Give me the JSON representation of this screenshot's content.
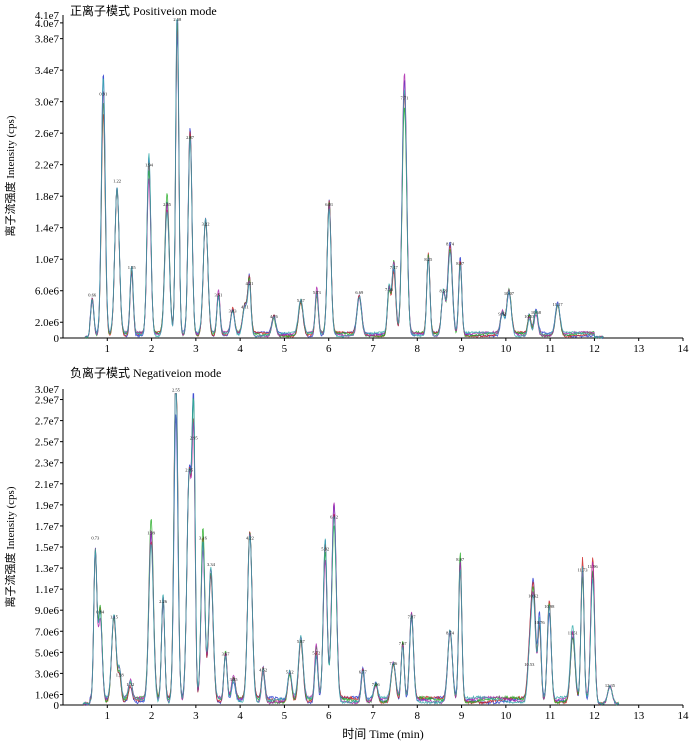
{
  "chart_data": [
    {
      "type": "line",
      "title": "正离子模式 Positiveion mode",
      "ylabel": "离子流强度 Intensity (cps)",
      "xlim": [
        0,
        14
      ],
      "ylim": [
        0,
        41000000
      ],
      "y_top_label": "4.1e7",
      "yticks": [
        "0",
        "2.0e6",
        "6.0e6",
        "1.0e7",
        "1.4e7",
        "1.8e7",
        "2.2e7",
        "2.6e7",
        "3.0e7",
        "3.4e7",
        "3.8e7",
        "4.0e7"
      ],
      "ytick_values": [
        0,
        2000000,
        6000000,
        10000000,
        14000000,
        18000000,
        22000000,
        26000000,
        30000000,
        34000000,
        38000000,
        40000000
      ],
      "xticks": [
        "1",
        "2",
        "3",
        "4",
        "5",
        "6",
        "7",
        "8",
        "9",
        "10",
        "11",
        "12",
        "13",
        "14"
      ],
      "colors": [
        "#2233cc",
        "#cc2222",
        "#22aa22",
        "#aa22aa",
        "#33aaaa"
      ],
      "peaks": [
        {
          "t": 0.66,
          "v": 5000000,
          "label": "0.66"
        },
        {
          "t": 0.91,
          "v": 30500000,
          "label": "0.91"
        },
        {
          "t": 1.22,
          "v": 19500000,
          "label": "1.22"
        },
        {
          "t": 1.55,
          "v": 8500000,
          "label": "1.55"
        },
        {
          "t": 1.94,
          "v": 21500000,
          "label": "1.94"
        },
        {
          "t": 2.35,
          "v": 16500000,
          "label": "2.35"
        },
        {
          "t": 2.58,
          "v": 40000000,
          "label": "2.58"
        },
        {
          "t": 2.87,
          "v": 25000000,
          "label": "2.87"
        },
        {
          "t": 3.22,
          "v": 14000000,
          "label": "3.22"
        },
        {
          "t": 3.51,
          "v": 5000000,
          "label": "3.51"
        },
        {
          "t": 3.83,
          "v": 3000000,
          "label": "3.83"
        },
        {
          "t": 4.11,
          "v": 3500000,
          "label": "4.11"
        },
        {
          "t": 4.21,
          "v": 6500000,
          "label": "4.21"
        },
        {
          "t": 4.76,
          "v": 2300000,
          "label": "4.76"
        },
        {
          "t": 5.37,
          "v": 4300000,
          "label": "5.37"
        },
        {
          "t": 5.73,
          "v": 5300000,
          "label": "5.73"
        },
        {
          "t": 6.01,
          "v": 16500000,
          "label": "6.01"
        },
        {
          "t": 6.69,
          "v": 5300000,
          "label": "6.69"
        },
        {
          "t": 7.36,
          "v": 5700000,
          "label": "7.36"
        },
        {
          "t": 7.47,
          "v": 8500000,
          "label": "7.47"
        },
        {
          "t": 7.71,
          "v": 30000000,
          "label": "7.71"
        },
        {
          "t": 8.25,
          "v": 9500000,
          "label": "8.25"
        },
        {
          "t": 8.59,
          "v": 5500000,
          "label": "8.59"
        },
        {
          "t": 8.74,
          "v": 11500000,
          "label": "8.74"
        },
        {
          "t": 8.97,
          "v": 9000000,
          "label": "8.97"
        },
        {
          "t": 9.92,
          "v": 2600000,
          "label": "9.92"
        },
        {
          "t": 10.07,
          "v": 5200000,
          "label": "10.07"
        },
        {
          "t": 10.53,
          "v": 2300000,
          "label": "10.53"
        },
        {
          "t": 10.68,
          "v": 2800000,
          "label": "10.68"
        },
        {
          "t": 11.17,
          "v": 3800000,
          "label": "11.17"
        }
      ]
    },
    {
      "type": "line",
      "title": "负离子模式 Negativeion mode",
      "ylabel": "离子流强度 Intensity (cps)",
      "xlabel": "时间 Time (min)",
      "xlim": [
        0,
        14
      ],
      "ylim": [
        0,
        30000000
      ],
      "y_top_label": "3.0e7",
      "yticks": [
        "0",
        "1.0e6",
        "3.0e6",
        "5.0e6",
        "7.0e6",
        "9.0e6",
        "1.1e7",
        "1.3e7",
        "1.5e7",
        "1.7e7",
        "1.9e7",
        "2.1e7",
        "2.3e7",
        "2.5e7",
        "2.7e7",
        "2.9e7"
      ],
      "ytick_values": [
        0,
        1000000,
        3000000,
        5000000,
        7000000,
        9000000,
        11000000,
        13000000,
        15000000,
        17000000,
        19000000,
        21000000,
        23000000,
        25000000,
        27000000,
        29000000
      ],
      "xticks": [
        "1",
        "2",
        "3",
        "4",
        "5",
        "6",
        "7",
        "8",
        "9",
        "10",
        "11",
        "12",
        "13",
        "14"
      ],
      "colors": [
        "#2233cc",
        "#cc2222",
        "#22aa22",
        "#aa22aa",
        "#33aaaa"
      ],
      "peaks": [
        {
          "t": 0.73,
          "v": 15500000,
          "label": "0.73"
        },
        {
          "t": 0.84,
          "v": 8500000,
          "label": "0.84"
        },
        {
          "t": 1.15,
          "v": 8000000,
          "label": "1.15"
        },
        {
          "t": 1.28,
          "v": 2500000,
          "label": "1.28"
        },
        {
          "t": 1.52,
          "v": 1600000,
          "label": "1.52"
        },
        {
          "t": 1.99,
          "v": 16000000,
          "label": "1.99"
        },
        {
          "t": 2.26,
          "v": 9500000,
          "label": "2.26"
        },
        {
          "t": 2.55,
          "v": 29800000,
          "label": "2.55"
        },
        {
          "t": 2.85,
          "v": 22000000,
          "label": "2.85"
        },
        {
          "t": 2.95,
          "v": 25000000,
          "label": "2.95"
        },
        {
          "t": 3.16,
          "v": 15500000,
          "label": "3.16"
        },
        {
          "t": 3.34,
          "v": 13000000,
          "label": "3.34"
        },
        {
          "t": 3.67,
          "v": 4500000,
          "label": "3.67"
        },
        {
          "t": 3.85,
          "v": 2100000,
          "label": "3.85"
        },
        {
          "t": 4.22,
          "v": 15500000,
          "label": "4.22"
        },
        {
          "t": 4.52,
          "v": 3000000,
          "label": "4.52"
        },
        {
          "t": 5.12,
          "v": 2800000,
          "label": "5.12"
        },
        {
          "t": 5.37,
          "v": 5700000,
          "label": "5.37"
        },
        {
          "t": 5.72,
          "v": 4600000,
          "label": "5.72"
        },
        {
          "t": 5.92,
          "v": 14500000,
          "label": "5.92"
        },
        {
          "t": 6.12,
          "v": 17500000,
          "label": "6.12"
        },
        {
          "t": 6.77,
          "v": 2800000,
          "label": "6.77"
        },
        {
          "t": 7.06,
          "v": 1600000,
          "label": "7.06"
        },
        {
          "t": 7.46,
          "v": 3600000,
          "label": "7.46"
        },
        {
          "t": 7.67,
          "v": 5500000,
          "label": "7.67"
        },
        {
          "t": 7.87,
          "v": 8000000,
          "label": "7.87"
        },
        {
          "t": 8.74,
          "v": 6500000,
          "label": "8.74"
        },
        {
          "t": 8.97,
          "v": 13500000,
          "label": "8.97"
        },
        {
          "t": 10.53,
          "v": 3500000,
          "label": "10.53"
        },
        {
          "t": 10.62,
          "v": 10000000,
          "label": "10.62"
        },
        {
          "t": 10.76,
          "v": 7500000,
          "label": "10.76"
        },
        {
          "t": 10.98,
          "v": 9000000,
          "label": "10.98"
        },
        {
          "t": 11.51,
          "v": 6500000,
          "label": "11.51"
        },
        {
          "t": 11.73,
          "v": 12500000,
          "label": "11.73"
        },
        {
          "t": 11.96,
          "v": 12800000,
          "label": "11.96"
        },
        {
          "t": 12.35,
          "v": 1500000,
          "label": "12.35"
        }
      ]
    }
  ]
}
